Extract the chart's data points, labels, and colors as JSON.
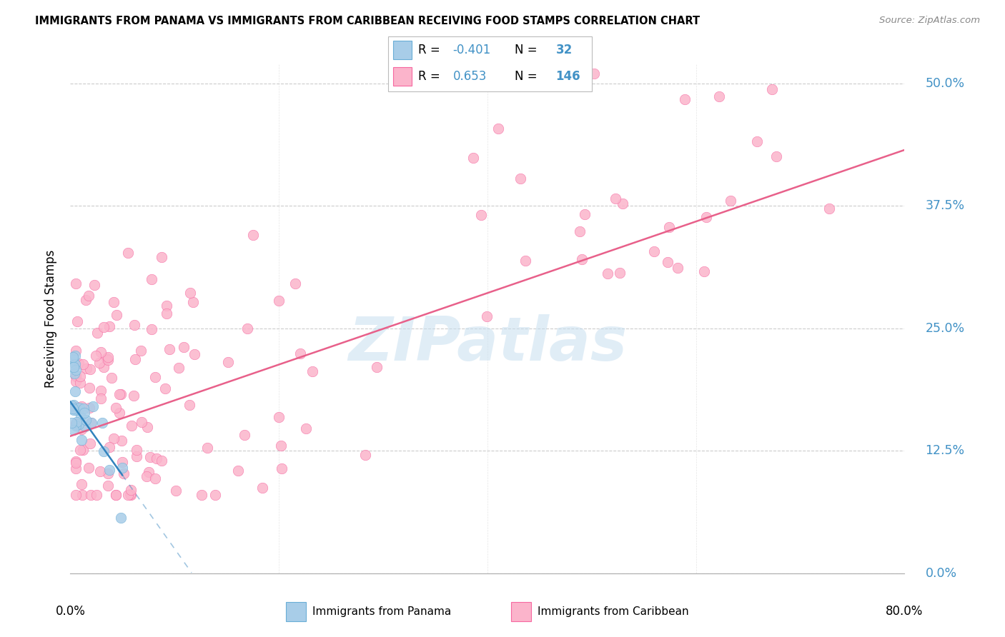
{
  "title": "IMMIGRANTS FROM PANAMA VS IMMIGRANTS FROM CARIBBEAN RECEIVING FOOD STAMPS CORRELATION CHART",
  "source": "Source: ZipAtlas.com",
  "ylabel": "Receiving Food Stamps",
  "xmin": 0.0,
  "xmax": 80.0,
  "ymin": 0.0,
  "ymax": 52.0,
  "ytick_values": [
    0.0,
    12.5,
    25.0,
    37.5,
    50.0
  ],
  "r_panama": -0.401,
  "n_panama": 32,
  "r_caribbean": 0.653,
  "n_caribbean": 146,
  "color_blue_fill": "#a8cde8",
  "color_blue_edge": "#6aaed6",
  "color_pink_fill": "#fbb4cb",
  "color_pink_edge": "#f768a1",
  "color_blue_line": "#3182bd",
  "color_pink_line": "#e8608a",
  "color_legend_text": "#4292c6",
  "color_grid": "#cccccc",
  "color_watermark": "#c8dff0",
  "watermark_text": "ZIPatlas",
  "legend_panama": "Immigrants from Panama",
  "legend_caribbean": "Immigrants from Caribbean",
  "pink_line_intercept": 14.0,
  "pink_line_slope": 0.365,
  "blue_line_intercept": 17.5,
  "blue_line_slope": -1.5
}
